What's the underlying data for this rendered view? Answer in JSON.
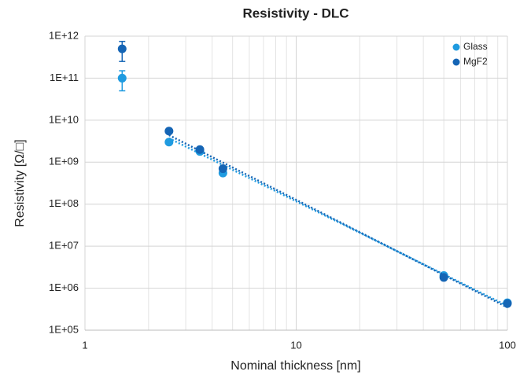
{
  "chart_data": {
    "type": "scatter",
    "title": "Resistivity - DLC",
    "xlabel": "Nominal thickness [nm]",
    "ylabel": "Resistivity [Ω/□]",
    "xscale": "log",
    "yscale": "log",
    "grid": true,
    "legend": "upper right",
    "xlim": [
      1,
      100
    ],
    "xticks": [
      1,
      10,
      100
    ],
    "xminorticks": [
      2,
      3,
      4,
      5,
      6,
      7,
      8,
      9,
      20,
      30,
      40,
      50,
      60,
      70,
      80,
      90
    ],
    "ylim": [
      100000,
      1000000000000
    ],
    "yticks": [
      {
        "value": 100000,
        "label": "1E+05"
      },
      {
        "value": 1000000,
        "label": "1E+06"
      },
      {
        "value": 10000000,
        "label": "1E+07"
      },
      {
        "value": 100000000,
        "label": "1E+08"
      },
      {
        "value": 1000000000,
        "label": "1E+09"
      },
      {
        "value": 10000000000,
        "label": "1E+10"
      },
      {
        "value": 100000000000,
        "label": "1E+11"
      },
      {
        "value": 1000000000000,
        "label": "1E+12"
      }
    ],
    "series": [
      {
        "name": "Glass",
        "color": "#1f9be0",
        "x": [
          1.5,
          2.5,
          3.5,
          4.5,
          50,
          100
        ],
        "values": [
          100000000000,
          3000000000,
          1800000000,
          550000000,
          2000000,
          450000
        ],
        "errors": [
          50000000000,
          null,
          null,
          null,
          null,
          null
        ],
        "trendline": {
          "x": [
            2.5,
            100
          ],
          "values": [
            3700000000,
            380000
          ]
        }
      },
      {
        "name": "MgF2",
        "color": "#1565b5",
        "x": [
          1.5,
          2.5,
          3.5,
          4.5,
          50,
          100
        ],
        "values": [
          500000000000,
          5500000000,
          2000000000,
          700000000,
          1800000,
          430000
        ],
        "errors": [
          250000000000,
          null,
          null,
          null,
          null,
          null
        ],
        "trendline": {
          "x": [
            2.5,
            100
          ],
          "values": [
            4400000000,
            350000
          ]
        }
      }
    ]
  }
}
